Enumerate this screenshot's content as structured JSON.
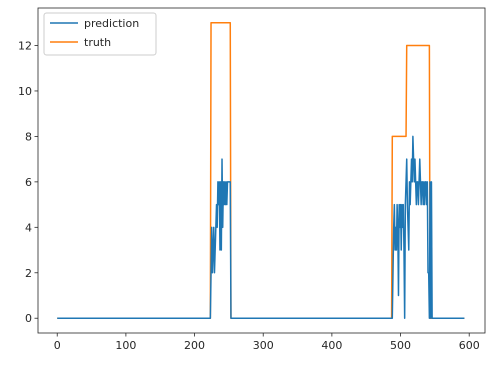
{
  "chart_data": {
    "type": "line",
    "title": "",
    "xlabel": "",
    "ylabel": "",
    "xlim": [
      -28,
      623
    ],
    "ylim": [
      -0.65,
      13.65
    ],
    "xticks": [
      0,
      100,
      200,
      300,
      400,
      500,
      600
    ],
    "yticks": [
      0,
      2,
      4,
      6,
      8,
      10,
      12
    ],
    "xtick_labels": [
      "0",
      "100",
      "200",
      "300",
      "400",
      "500",
      "600"
    ],
    "ytick_labels": [
      "0",
      "2",
      "4",
      "6",
      "8",
      "10",
      "12"
    ],
    "grid": false,
    "legend_position": "top-left",
    "series": [
      {
        "name": "truth",
        "color": "#ff7f0e",
        "x": [
          0,
          223,
          224,
          252,
          253,
          487,
          488,
          508,
          509,
          542,
          543,
          593
        ],
        "y": [
          0,
          0,
          13,
          13,
          0,
          0,
          8,
          8,
          12,
          12,
          0,
          0
        ]
      },
      {
        "name": "prediction",
        "color": "#1f77b4",
        "x": [
          0,
          223,
          225,
          226,
          228,
          229,
          232,
          233,
          234,
          235,
          236,
          237,
          238,
          239,
          240,
          241,
          242,
          243,
          244,
          245,
          246,
          247,
          248,
          249,
          250,
          251,
          252,
          253,
          488,
          489,
          490,
          491,
          492,
          493,
          494,
          495,
          496,
          497,
          498,
          499,
          500,
          501,
          502,
          503,
          504,
          505,
          506,
          507,
          508,
          509,
          510,
          511,
          512,
          513,
          514,
          515,
          516,
          517,
          518,
          519,
          520,
          521,
          522,
          523,
          524,
          525,
          526,
          527,
          528,
          529,
          530,
          531,
          532,
          533,
          534,
          535,
          536,
          537,
          538,
          539,
          540,
          541,
          542,
          543,
          544,
          545,
          546,
          547,
          548,
          593
        ],
        "y": [
          0,
          0,
          4,
          2,
          4,
          2,
          5,
          4,
          6,
          5,
          6,
          3,
          6,
          3,
          7,
          4,
          6,
          5,
          6,
          5,
          6,
          5,
          6,
          6,
          6,
          6,
          6,
          0,
          0,
          2,
          4,
          5,
          3,
          4,
          3,
          5,
          4,
          1,
          5,
          4,
          5,
          3,
          5,
          4,
          5,
          3,
          0,
          5,
          6,
          7,
          5,
          4,
          3,
          6,
          5,
          6,
          7,
          6,
          8,
          7,
          6,
          7,
          6,
          5,
          6,
          6,
          5,
          6,
          7,
          6,
          5,
          6,
          6,
          5,
          6,
          5,
          6,
          6,
          5,
          6,
          2,
          2,
          0,
          6,
          0,
          6,
          0,
          0,
          0,
          0
        ]
      }
    ]
  }
}
